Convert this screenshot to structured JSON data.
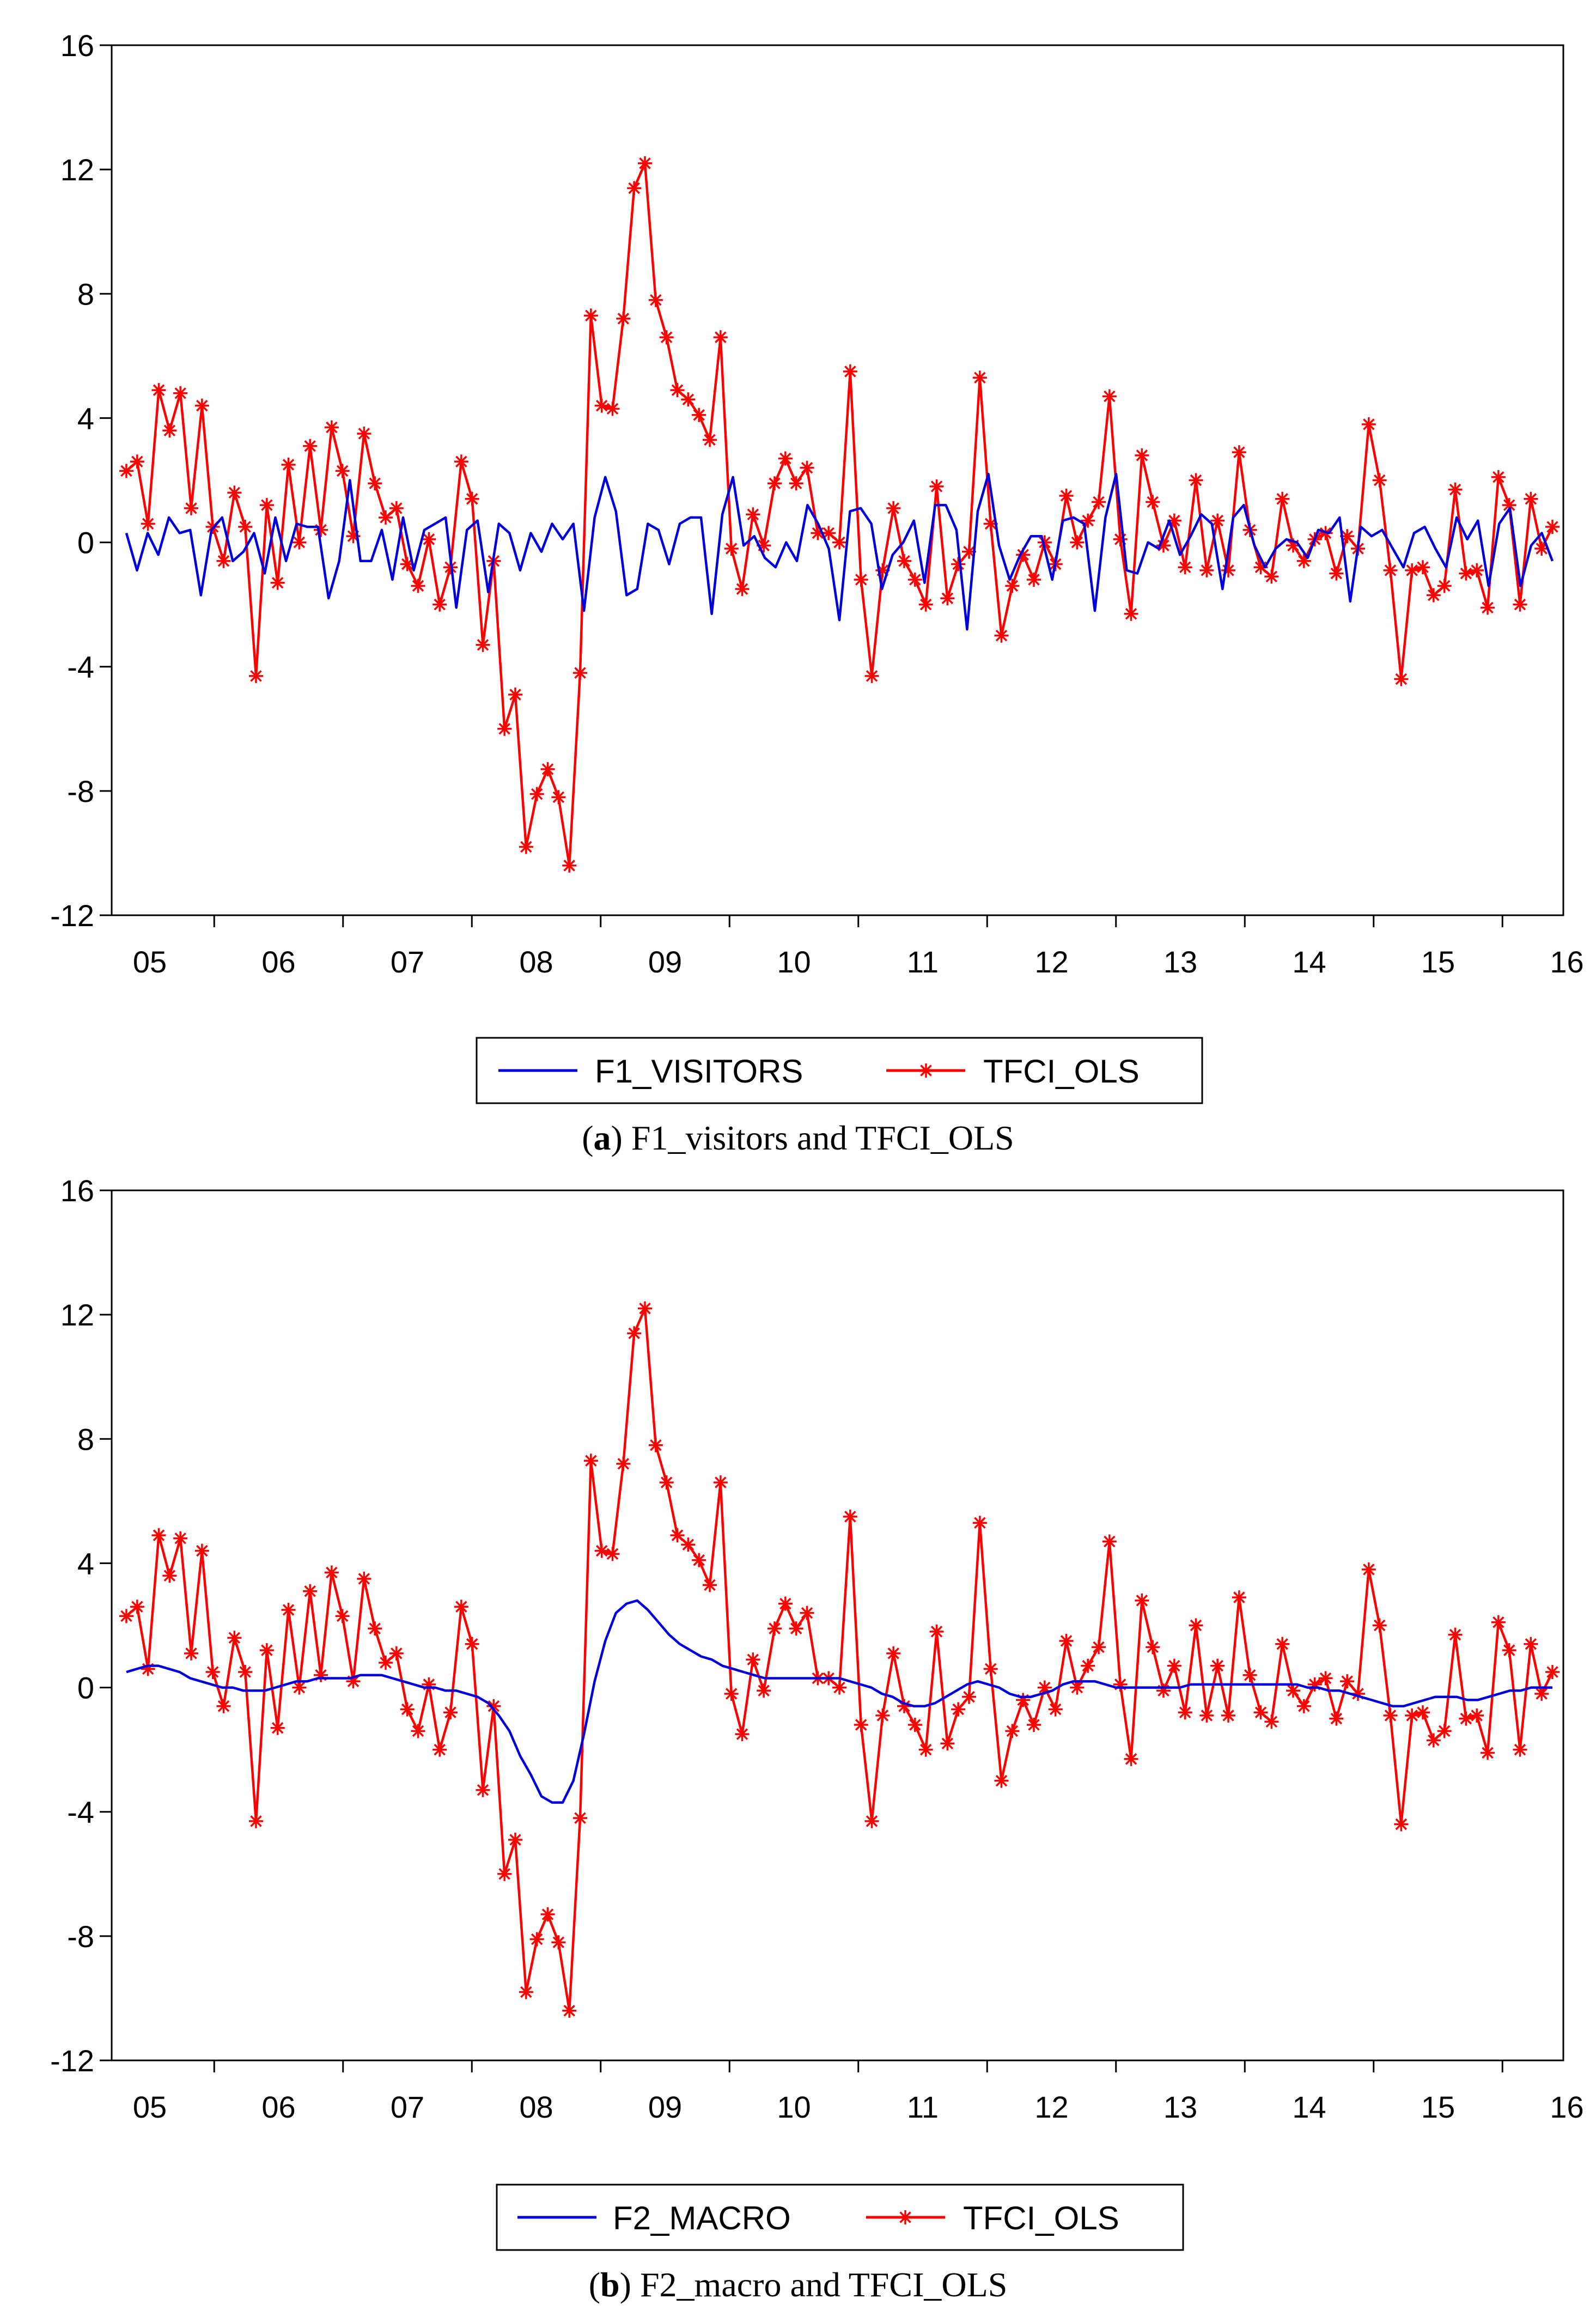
{
  "chart_data": [
    {
      "type": "line",
      "caption": {
        "letter": "a",
        "text": "F1_visitors and TFCI_OLS"
      },
      "xlabel": "",
      "ylabel": "",
      "ylim": [
        -12,
        16
      ],
      "yticks": [
        "16",
        "12",
        "8",
        "4",
        "0",
        "-4",
        "-8",
        "-12"
      ],
      "ytick_values": [
        16,
        12,
        8,
        4,
        0,
        -4,
        -8,
        -12
      ],
      "xticks": [
        "05",
        "06",
        "07",
        "08",
        "09",
        "10",
        "11",
        "12",
        "13",
        "14",
        "15",
        "16"
      ],
      "series": [
        {
          "name": "F1_VISITORS",
          "color": "#0000dd",
          "marker": "none",
          "values": [
            0.3,
            -0.9,
            0.3,
            -0.4,
            0.8,
            0.3,
            0.4,
            -1.7,
            0.4,
            0.8,
            -0.6,
            -0.3,
            0.3,
            -1.0,
            0.8,
            -0.6,
            0.6,
            0.5,
            0.5,
            -1.8,
            -0.6,
            2.0,
            -0.6,
            -0.6,
            0.4,
            -1.2,
            0.8,
            -0.9,
            0.4,
            0.6,
            0.8,
            -2.1,
            0.4,
            0.7,
            -1.6,
            0.6,
            0.3,
            -0.9,
            0.3,
            -0.3,
            0.6,
            0.1,
            0.6,
            -2.2,
            0.8,
            2.1,
            1.0,
            -1.7,
            -1.5,
            0.6,
            0.4,
            -0.7,
            0.6,
            0.8,
            0.8,
            -2.3,
            0.9,
            2.1,
            -0.1,
            0.2,
            -0.5,
            -0.8,
            0.0,
            -0.6,
            1.2,
            0.6,
            -0.2,
            -2.5,
            1.0,
            1.1,
            0.6,
            -1.5,
            -0.4,
            0.0,
            0.7,
            -1.3,
            1.2,
            1.2,
            0.4,
            -2.8,
            1.0,
            2.2,
            -0.1,
            -1.2,
            -0.4,
            0.2,
            0.2,
            -1.2,
            0.7,
            0.8,
            0.6,
            -2.2,
            0.8,
            2.2,
            -0.9,
            -1.0,
            0.0,
            -0.2,
            0.7,
            -0.4,
            0.2,
            0.9,
            0.6,
            -1.5,
            0.8,
            1.2,
            -0.1,
            -0.8,
            -0.2,
            0.1,
            0.0,
            -0.5,
            0.4,
            0.3,
            0.8,
            -1.9,
            0.5,
            0.2,
            0.4,
            -0.2,
            -0.8,
            0.3,
            0.5,
            -0.2,
            -0.8,
            0.8,
            0.1,
            0.7,
            -1.4,
            0.6,
            1.1,
            -1.4,
            -0.1,
            0.3,
            -0.6
          ]
        },
        {
          "name": "TFCI_OLS",
          "color": "#ff0000",
          "marker": "star",
          "values": [
            2.3,
            2.6,
            0.6,
            4.9,
            3.6,
            4.8,
            1.1,
            4.4,
            0.5,
            -0.6,
            1.6,
            0.5,
            -4.3,
            1.2,
            -1.3,
            2.5,
            0.0,
            3.1,
            0.4,
            3.7,
            2.3,
            0.2,
            3.5,
            1.9,
            0.8,
            1.1,
            -0.7,
            -1.4,
            0.1,
            -2.0,
            -0.8,
            2.6,
            1.4,
            -3.3,
            -0.6,
            -6.0,
            -4.9,
            -9.8,
            -8.1,
            -7.3,
            -8.2,
            -10.4,
            -4.2,
            7.3,
            4.4,
            4.3,
            7.2,
            11.4,
            12.2,
            7.8,
            6.6,
            4.9,
            4.6,
            4.1,
            3.3,
            6.6,
            -0.2,
            -1.5,
            0.9,
            -0.1,
            1.9,
            2.7,
            1.9,
            2.4,
            0.3,
            0.3,
            0.0,
            5.5,
            -1.2,
            -4.3,
            -0.9,
            1.1,
            -0.6,
            -1.2,
            -2.0,
            1.8,
            -1.8,
            -0.7,
            -0.3,
            5.3,
            0.6,
            -3.0,
            -1.4,
            -0.4,
            -1.2,
            0.0,
            -0.7,
            1.5,
            0.0,
            0.7,
            1.3,
            4.7,
            0.1,
            -2.3,
            2.8,
            1.3,
            -0.1,
            0.7,
            -0.8,
            2.0,
            -0.9,
            0.7,
            -0.9,
            2.9,
            0.4,
            -0.8,
            -1.1,
            1.4,
            -0.1,
            -0.6,
            0.1,
            0.3,
            -1.0,
            0.2,
            -0.2,
            3.8,
            2.0,
            -0.9,
            -4.4,
            -0.9,
            -0.8,
            -1.7,
            -1.4,
            1.7,
            -1.0,
            -0.9,
            -2.1,
            2.1,
            1.2,
            -2.0,
            1.4,
            -0.2,
            0.5
          ]
        }
      ]
    },
    {
      "type": "line",
      "caption": {
        "letter": "b",
        "text": "F2_macro and TFCI_OLS"
      },
      "xlabel": "",
      "ylabel": "",
      "ylim": [
        -12,
        16
      ],
      "yticks": [
        "16",
        "12",
        "8",
        "4",
        "0",
        "-4",
        "-8",
        "-12"
      ],
      "ytick_values": [
        16,
        12,
        8,
        4,
        0,
        -4,
        -8,
        -12
      ],
      "xticks": [
        "05",
        "06",
        "07",
        "08",
        "09",
        "10",
        "11",
        "12",
        "13",
        "14",
        "15",
        "16"
      ],
      "series": [
        {
          "name": "F2_MACRO",
          "color": "#0000dd",
          "marker": "none",
          "values": [
            0.5,
            0.6,
            0.7,
            0.7,
            0.6,
            0.5,
            0.3,
            0.2,
            0.1,
            0.0,
            0.0,
            -0.1,
            -0.1,
            -0.1,
            0.0,
            0.1,
            0.2,
            0.2,
            0.3,
            0.3,
            0.3,
            0.3,
            0.4,
            0.4,
            0.4,
            0.3,
            0.2,
            0.1,
            0.0,
            0.0,
            -0.1,
            -0.1,
            -0.2,
            -0.3,
            -0.5,
            -0.9,
            -1.4,
            -2.2,
            -2.8,
            -3.5,
            -3.7,
            -3.7,
            -3.0,
            -1.5,
            0.2,
            1.5,
            2.4,
            2.7,
            2.8,
            2.5,
            2.1,
            1.7,
            1.4,
            1.2,
            1.0,
            0.9,
            0.7,
            0.6,
            0.5,
            0.4,
            0.3,
            0.3,
            0.3,
            0.3,
            0.3,
            0.3,
            0.3,
            0.3,
            0.2,
            0.1,
            0.0,
            -0.2,
            -0.3,
            -0.5,
            -0.6,
            -0.6,
            -0.5,
            -0.3,
            -0.1,
            0.1,
            0.2,
            0.1,
            0.0,
            -0.2,
            -0.3,
            -0.3,
            -0.2,
            -0.1,
            0.1,
            0.2,
            0.2,
            0.2,
            0.1,
            0.0,
            0.0,
            0.0,
            0.0,
            0.0,
            0.0,
            0.0,
            0.1,
            0.1,
            0.1,
            0.1,
            0.1,
            0.1,
            0.1,
            0.1,
            0.1,
            0.1,
            0.1,
            0.0,
            0.0,
            -0.1,
            -0.1,
            -0.2,
            -0.3,
            -0.4,
            -0.5,
            -0.6,
            -0.6,
            -0.5,
            -0.4,
            -0.3,
            -0.3,
            -0.3,
            -0.4,
            -0.4,
            -0.3,
            -0.2,
            -0.1,
            -0.1,
            0.0,
            0.0,
            0.0
          ]
        },
        {
          "name": "TFCI_OLS",
          "color": "#ff0000",
          "marker": "star",
          "values": [
            2.3,
            2.6,
            0.6,
            4.9,
            3.6,
            4.8,
            1.1,
            4.4,
            0.5,
            -0.6,
            1.6,
            0.5,
            -4.3,
            1.2,
            -1.3,
            2.5,
            0.0,
            3.1,
            0.4,
            3.7,
            2.3,
            0.2,
            3.5,
            1.9,
            0.8,
            1.1,
            -0.7,
            -1.4,
            0.1,
            -2.0,
            -0.8,
            2.6,
            1.4,
            -3.3,
            -0.6,
            -6.0,
            -4.9,
            -9.8,
            -8.1,
            -7.3,
            -8.2,
            -10.4,
            -4.2,
            7.3,
            4.4,
            4.3,
            7.2,
            11.4,
            12.2,
            7.8,
            6.6,
            4.9,
            4.6,
            4.1,
            3.3,
            6.6,
            -0.2,
            -1.5,
            0.9,
            -0.1,
            1.9,
            2.7,
            1.9,
            2.4,
            0.3,
            0.3,
            0.0,
            5.5,
            -1.2,
            -4.3,
            -0.9,
            1.1,
            -0.6,
            -1.2,
            -2.0,
            1.8,
            -1.8,
            -0.7,
            -0.3,
            5.3,
            0.6,
            -3.0,
            -1.4,
            -0.4,
            -1.2,
            0.0,
            -0.7,
            1.5,
            0.0,
            0.7,
            1.3,
            4.7,
            0.1,
            -2.3,
            2.8,
            1.3,
            -0.1,
            0.7,
            -0.8,
            2.0,
            -0.9,
            0.7,
            -0.9,
            2.9,
            0.4,
            -0.8,
            -1.1,
            1.4,
            -0.1,
            -0.6,
            0.1,
            0.3,
            -1.0,
            0.2,
            -0.2,
            3.8,
            2.0,
            -0.9,
            -4.4,
            -0.9,
            -0.8,
            -1.7,
            -1.4,
            1.7,
            -1.0,
            -0.9,
            -2.1,
            2.1,
            1.2,
            -2.0,
            1.4,
            -0.2,
            0.5
          ]
        }
      ]
    }
  ]
}
